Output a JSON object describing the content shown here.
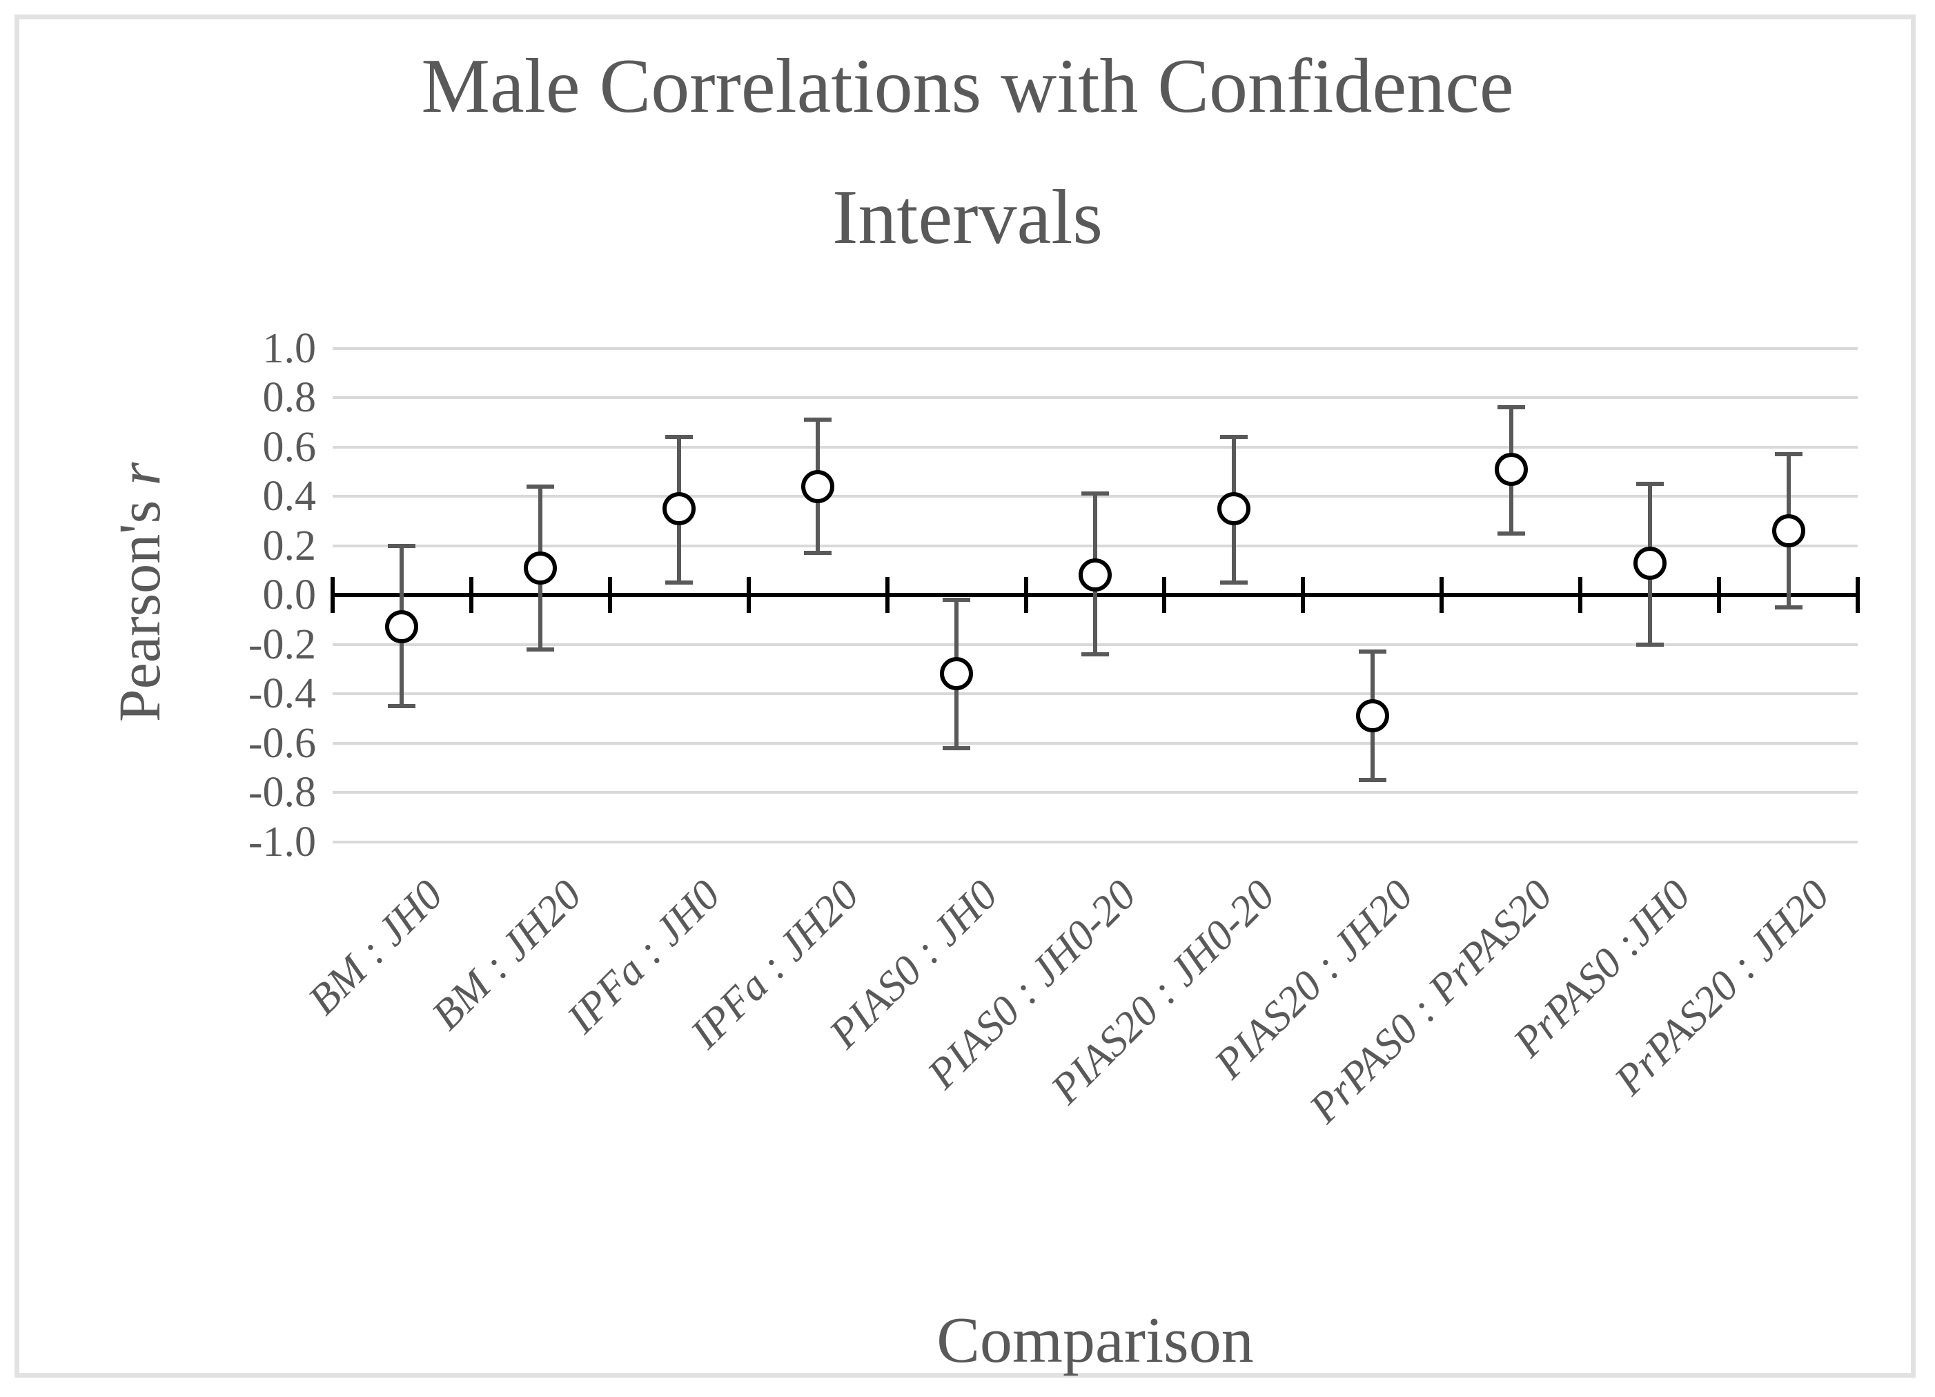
{
  "chart": {
    "title_line1": "Male Correlations with Confidence",
    "title_line2": "Intervals",
    "ylabel_main": "Pearson's ",
    "ylabel_italic": "r",
    "xlabel": "Comparison"
  },
  "chart_data": {
    "type": "scatter",
    "title": "Male Correlations with Confidence Intervals",
    "xlabel": "Comparison",
    "ylabel": "Pearson's r",
    "ylim": [
      -1.0,
      1.0
    ],
    "grid": true,
    "legend_position": "none",
    "marker_style": "open-circle",
    "categories": [
      "BM : JH0",
      "BM : JH20",
      "IPFa : JH0",
      "IPFa : JH20",
      "PIAS0 : JH0",
      "PIAS0 : JH0-20",
      "PIAS20 : JH0-20",
      "PIAS20 : JH20",
      "PrPAS0 : PrPAS20",
      "PrPAS0 :JH0",
      "PrPAS20 : JH20"
    ],
    "series": [
      {
        "name": "Pearson's r",
        "values": [
          -0.13,
          0.11,
          0.35,
          0.44,
          -0.32,
          0.08,
          0.35,
          -0.49,
          0.51,
          0.13,
          0.26
        ]
      }
    ],
    "ci_low": [
      -0.45,
      -0.22,
      0.05,
      0.17,
      -0.62,
      -0.24,
      0.05,
      -0.75,
      0.25,
      -0.2,
      -0.05
    ],
    "ci_high": [
      0.2,
      0.44,
      0.64,
      0.71,
      -0.02,
      0.41,
      0.64,
      -0.23,
      0.76,
      0.45,
      0.57
    ],
    "yticks": [
      {
        "label": "1.0",
        "value": 1.0
      },
      {
        "label": "0.8",
        "value": 0.8
      },
      {
        "label": "0.6",
        "value": 0.6
      },
      {
        "label": "0.4",
        "value": 0.4
      },
      {
        "label": "0.2",
        "value": 0.2
      },
      {
        "label": "0.0",
        "value": 0.0
      },
      {
        "label": "-0.2",
        "value": -0.2
      },
      {
        "label": "-0.4",
        "value": -0.4
      },
      {
        "label": "-0.6",
        "value": -0.6
      },
      {
        "label": "-0.8",
        "value": -0.8
      },
      {
        "label": "-1.0",
        "value": -1.0
      }
    ]
  },
  "colors": {
    "text_gray": "#595959",
    "errorbar_gray": "#595959",
    "gridline_gray": "#d9d9d9",
    "axis_black": "#000000",
    "marker_stroke": "#000000",
    "marker_fill": "#ffffff",
    "frame_border": "#e2e2e2",
    "background": "#ffffff"
  }
}
